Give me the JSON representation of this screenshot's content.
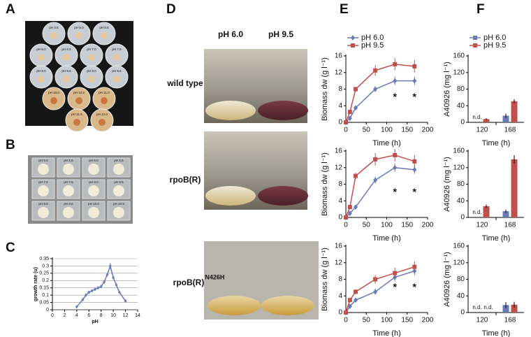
{
  "figure": {
    "panel_labels": [
      "A",
      "B",
      "C",
      "D",
      "E",
      "F"
    ],
    "plates_A": [
      "pH 4.5",
      "pH 5.0",
      "pH 5.5",
      "pH 6.0",
      "pH 6.5",
      "pH 7.0",
      "pH 7.5",
      "pH 8.0",
      "pH 8.5",
      "pH 9.0",
      "pH 9.5",
      "pH 10.0",
      "pH 10.5",
      "pH 11.0",
      "pH 11.5",
      "pH 12.0"
    ],
    "plates_B": [
      "pH 5.0",
      "pH 5.5",
      "pH 6.0",
      "pH 6.5",
      "pH 7.0",
      "pH 7.5",
      "pH 8.0",
      "pH 8.5",
      "pH 9.0",
      "pH 9.5",
      "pH 10.0",
      "pH 10.5"
    ],
    "columns_D": [
      "pH 6.0",
      "pH 9.5"
    ],
    "rows_D": [
      {
        "text": "wild type"
      },
      {
        "text": "rpoB(R)"
      },
      {
        "text": "rpoB(R)",
        "sup": "N426H"
      }
    ]
  },
  "chart_data": [
    {
      "type": "line",
      "xlabel": "pH",
      "ylabel": "growth rate (u)",
      "x": [
        4,
        5,
        5.5,
        6,
        6.5,
        7,
        7.5,
        8,
        8.5,
        9,
        9.5,
        10,
        10.5,
        11,
        12
      ],
      "series": [
        {
          "color": "#6a7ab5",
          "marker": "diamond",
          "values": [
            0.02,
            0.07,
            0.1,
            0.12,
            0.13,
            0.14,
            0.15,
            0.16,
            0.19,
            0.24,
            0.3,
            0.22,
            0.17,
            0.12,
            0.06
          ],
          "errors": [
            0.005,
            0.005,
            0.008,
            0.008,
            0.008,
            0.01,
            0.01,
            0.01,
            0.01,
            0.012,
            0.02,
            0.012,
            0.01,
            0.008,
            0.005
          ]
        }
      ],
      "xlim": [
        0,
        14
      ],
      "xticks": [
        0,
        2,
        4,
        6,
        8,
        10,
        12,
        14
      ],
      "ylim": [
        0,
        0.35
      ],
      "yticks": [
        0,
        0.05,
        0.1,
        0.15,
        0.2,
        0.25,
        0.3,
        0.35
      ],
      "grid": true
    },
    {
      "type": "line",
      "xlabel": "Time (h)",
      "ylabel": "Biomass dw (g l⁻¹)",
      "x": [
        0,
        10,
        24,
        72,
        120,
        168
      ],
      "series": [
        {
          "name": "pH 6.0",
          "color": "#6a7ab5",
          "marker": "diamond",
          "values": [
            0,
            1,
            3.5,
            8,
            10,
            10
          ],
          "errors": [
            0,
            0.2,
            0.4,
            0.7,
            1,
            1
          ]
        },
        {
          "name": "pH 9.5",
          "color": "#c0504d",
          "marker": "square",
          "values": [
            0,
            2.5,
            8,
            12.5,
            14,
            13.5
          ],
          "errors": [
            0,
            0.3,
            0.6,
            1.3,
            1.5,
            1.5
          ]
        }
      ],
      "annotations": [
        {
          "text": "*",
          "x": 120,
          "y": 6
        },
        {
          "text": "*",
          "x": 168,
          "y": 6
        }
      ],
      "xlim": [
        0,
        200
      ],
      "xticks": [
        0,
        50,
        100,
        150,
        200
      ],
      "ylim": [
        0,
        16
      ],
      "yticks": [
        0,
        4,
        8,
        12,
        16
      ],
      "legend": "upper left"
    },
    {
      "type": "line",
      "xlabel": "Time (h)",
      "ylabel": "Biomass dw (g l⁻¹)",
      "x": [
        0,
        10,
        24,
        72,
        120,
        168
      ],
      "series": [
        {
          "color": "#6a7ab5",
          "marker": "diamond",
          "values": [
            0,
            1,
            2.5,
            9,
            12,
            11.5
          ],
          "errors": [
            0,
            0.2,
            0.4,
            0.8,
            1,
            1
          ]
        },
        {
          "color": "#c0504d",
          "marker": "square",
          "values": [
            0,
            2.5,
            10,
            14,
            15,
            13.5
          ],
          "errors": [
            0,
            0.3,
            0.8,
            1.5,
            1.5,
            1.5
          ]
        }
      ],
      "annotations": [
        {
          "text": "*",
          "x": 120,
          "y": 6
        },
        {
          "text": "*",
          "x": 168,
          "y": 6
        }
      ],
      "xlim": [
        0,
        200
      ],
      "xticks": [
        0,
        50,
        100,
        150,
        200
      ],
      "ylim": [
        0,
        16
      ],
      "yticks": [
        0,
        4,
        8,
        12,
        16
      ]
    },
    {
      "type": "line",
      "xlabel": "Time (h)",
      "ylabel": "Biomass dw (g l⁻¹)",
      "x": [
        0,
        10,
        24,
        72,
        120,
        168
      ],
      "series": [
        {
          "color": "#6a7ab5",
          "marker": "diamond",
          "values": [
            0,
            1.5,
            3,
            5,
            8.5,
            10
          ],
          "errors": [
            0,
            0.2,
            0.4,
            0.7,
            1,
            1
          ]
        },
        {
          "color": "#c0504d",
          "marker": "square",
          "values": [
            0,
            3,
            5,
            8,
            9.5,
            11
          ],
          "errors": [
            0,
            0.3,
            0.6,
            1,
            1.3,
            1.3
          ]
        }
      ],
      "annotations": [
        {
          "text": "*",
          "x": 120,
          "y": 6
        },
        {
          "text": "*",
          "x": 168,
          "y": 6
        }
      ],
      "xlim": [
        0,
        200
      ],
      "xticks": [
        0,
        50,
        100,
        150,
        200
      ],
      "ylim": [
        0,
        16
      ],
      "yticks": [
        0,
        4,
        8,
        12,
        16
      ]
    },
    {
      "type": "bar",
      "xlabel": "Time (h)",
      "ylabel": "A40926 (mg l⁻¹)",
      "categories": [
        "120",
        "168"
      ],
      "series": [
        {
          "name": "pH 6.0",
          "color": "#6a7ab5",
          "values": [
            null,
            16
          ],
          "value_labels": [
            "n.d.",
            null
          ],
          "errors": [
            null,
            5
          ]
        },
        {
          "name": "pH 9.5",
          "color": "#c0504d",
          "values": [
            8,
            51
          ],
          "errors": [
            2,
            5
          ]
        }
      ],
      "ylim": [
        0,
        160
      ],
      "yticks": [
        0,
        40,
        80,
        120,
        160
      ],
      "legend": "upper left"
    },
    {
      "type": "bar",
      "xlabel": "Time (h)",
      "ylabel": "A40926 (mg l⁻¹)",
      "categories": [
        "120",
        "168"
      ],
      "series": [
        {
          "color": "#6a7ab5",
          "values": [
            null,
            15
          ],
          "value_labels": [
            "n.d.",
            null
          ],
          "errors": [
            null,
            4
          ]
        },
        {
          "color": "#c0504d",
          "values": [
            27,
            140
          ],
          "errors": [
            4,
            10
          ]
        }
      ],
      "ylim": [
        0,
        160
      ],
      "yticks": [
        0,
        40,
        80,
        120,
        160
      ]
    },
    {
      "type": "bar",
      "xlabel": "Time (h)",
      "ylabel": "A40926 (mg l⁻¹)",
      "categories": [
        "120",
        "168"
      ],
      "series": [
        {
          "color": "#6a7ab5",
          "values": [
            null,
            18
          ],
          "value_labels": [
            "n.d.",
            null
          ],
          "errors": [
            null,
            7
          ]
        },
        {
          "color": "#c0504d",
          "values": [
            null,
            19
          ],
          "value_labels": [
            "n.d.",
            null
          ],
          "errors": [
            null,
            7
          ]
        }
      ],
      "ylim": [
        0,
        160
      ],
      "yticks": [
        0,
        40,
        80,
        120,
        160
      ]
    }
  ]
}
